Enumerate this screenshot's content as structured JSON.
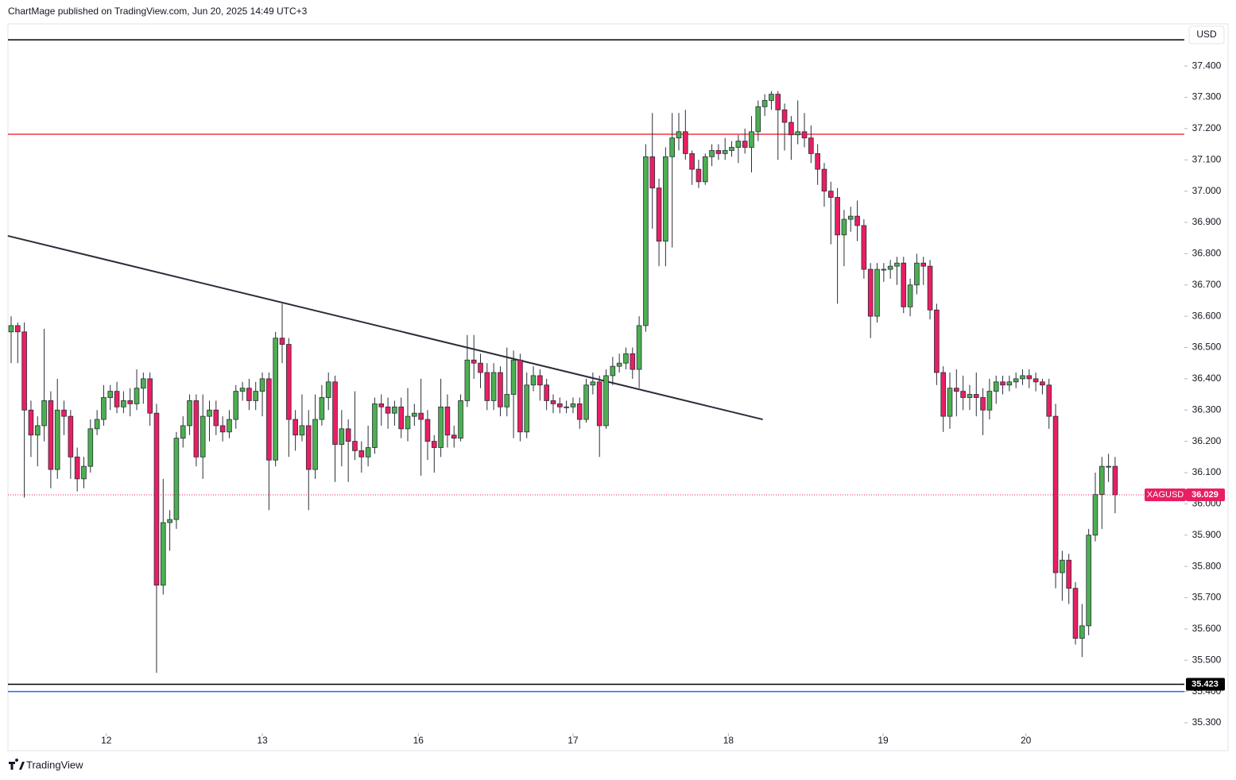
{
  "header": {
    "text": "ChartMage published on TradingView.com, Jun 20, 2025 14:49 UTC+3"
  },
  "footer": {
    "brand": "TradingView"
  },
  "chart_data": {
    "type": "candlestick",
    "symbol": "XAGUSD",
    "currency": "USD",
    "xlim": [
      -0.48,
      177.47
    ],
    "ylim": [
      35.211,
      37.535
    ],
    "xticks": [
      {
        "value": 14.4,
        "label": "12"
      },
      {
        "value": 38.0,
        "label": "13"
      },
      {
        "value": 61.6,
        "label": "16"
      },
      {
        "value": 85.0,
        "label": "17"
      },
      {
        "value": 108.5,
        "label": "18"
      },
      {
        "value": 131.9,
        "label": "19"
      },
      {
        "value": 153.5,
        "label": "20"
      }
    ],
    "yticks": [
      {
        "value": 35.3,
        "label": "35.300"
      },
      {
        "value": 35.4,
        "label": "35.400"
      },
      {
        "value": 35.5,
        "label": "35.500"
      },
      {
        "value": 35.6,
        "label": "35.600"
      },
      {
        "value": 35.7,
        "label": "35.700"
      },
      {
        "value": 35.8,
        "label": "35.800"
      },
      {
        "value": 35.9,
        "label": "35.900"
      },
      {
        "value": 36.0,
        "label": "36.000"
      },
      {
        "value": 36.1,
        "label": "36.100"
      },
      {
        "value": 36.2,
        "label": "36.200"
      },
      {
        "value": 36.3,
        "label": "36.300"
      },
      {
        "value": 36.4,
        "label": "36.400"
      },
      {
        "value": 36.5,
        "label": "36.500"
      },
      {
        "value": 36.6,
        "label": "36.600"
      },
      {
        "value": 36.7,
        "label": "36.700"
      },
      {
        "value": 36.8,
        "label": "36.800"
      },
      {
        "value": 36.9,
        "label": "36.900"
      },
      {
        "value": 37.0,
        "label": "37.000"
      },
      {
        "value": 37.1,
        "label": "37.100"
      },
      {
        "value": 37.2,
        "label": "37.200"
      },
      {
        "value": 37.3,
        "label": "37.300"
      },
      {
        "value": 37.4,
        "label": "37.400"
      }
    ],
    "up_color": "#4caf50",
    "down_color": "#e91e63",
    "levels": [
      {
        "value": 37.484,
        "color": "#000000"
      },
      {
        "value": 37.182,
        "color": "#f23645"
      },
      {
        "value": 35.423,
        "color": "#000000",
        "tag": true
      },
      {
        "value": 35.4,
        "color": "#2962ff"
      }
    ],
    "trendlines": [
      {
        "x": [
          -0.5,
          113.7
        ],
        "y": [
          36.857,
          36.27
        ],
        "color": "#2a2e39"
      }
    ],
    "open": [
      36.55,
      36.57,
      36.55,
      36.3,
      36.22,
      36.25,
      36.33,
      36.11,
      36.3,
      36.28,
      36.15,
      36.08,
      36.12,
      36.24,
      36.27,
      36.34,
      36.36,
      36.31,
      36.33,
      36.32,
      36.37,
      36.4,
      36.29,
      35.74,
      35.94,
      35.95,
      36.21,
      36.25,
      36.33,
      36.15,
      36.28,
      36.3,
      36.25,
      36.23,
      36.27,
      36.36,
      36.37,
      36.33,
      36.36,
      36.4,
      36.14,
      36.53,
      36.51,
      36.27,
      36.22,
      36.25,
      36.11,
      36.27,
      36.34,
      36.39,
      36.19,
      36.24,
      36.2,
      36.17,
      36.15,
      36.18,
      36.32,
      36.31,
      36.29,
      36.31,
      36.24,
      36.28,
      36.29,
      36.27,
      36.2,
      36.18,
      36.31,
      36.22,
      36.21,
      36.33,
      36.46,
      36.45,
      36.42,
      36.33,
      36.42,
      36.31,
      36.35,
      36.46,
      36.23,
      36.38,
      36.41,
      36.38,
      36.33,
      36.32,
      36.31,
      36.31,
      36.32,
      36.27,
      36.38,
      36.39,
      36.25,
      36.41,
      36.44,
      36.45,
      36.48,
      36.43,
      36.57,
      37.11,
      37.01,
      36.84,
      37.11,
      37.17,
      37.19,
      37.12,
      37.07,
      37.03,
      37.11,
      37.13,
      37.12,
      37.13,
      37.14,
      37.16,
      37.14,
      37.19,
      37.27,
      37.29,
      37.31,
      37.26,
      37.22,
      37.18,
      37.19,
      37.17,
      37.12,
      37.07,
      37.0,
      36.98,
      36.86,
      36.91,
      36.92,
      36.89,
      36.75,
      36.6,
      36.75,
      36.75,
      36.76,
      36.77,
      36.63,
      36.7,
      36.77,
      36.76,
      36.62,
      36.42,
      36.28,
      36.37,
      36.36,
      36.34,
      36.35,
      36.34,
      36.3,
      36.36,
      36.39,
      36.38,
      36.39,
      36.4,
      36.41,
      36.4,
      36.39,
      36.38,
      36.28,
      35.78,
      35.82,
      35.73,
      35.57,
      35.61,
      35.9,
      36.03,
      36.12,
      36.12
    ],
    "high": [
      36.6,
      36.58,
      36.58,
      36.33,
      36.28,
      36.56,
      36.36,
      36.4,
      36.33,
      36.3,
      36.18,
      36.15,
      36.27,
      36.3,
      36.38,
      36.38,
      36.39,
      36.36,
      36.37,
      36.43,
      36.42,
      36.42,
      36.32,
      36.08,
      35.98,
      36.23,
      36.28,
      36.35,
      36.35,
      36.35,
      36.33,
      36.33,
      36.28,
      36.3,
      36.38,
      36.39,
      36.4,
      36.39,
      36.42,
      36.42,
      36.55,
      36.64,
      36.53,
      36.3,
      36.35,
      36.3,
      36.35,
      36.38,
      36.42,
      36.41,
      36.3,
      36.27,
      36.36,
      36.2,
      36.25,
      36.34,
      36.35,
      36.34,
      36.33,
      36.34,
      36.37,
      36.32,
      36.4,
      36.3,
      36.22,
      36.4,
      36.35,
      36.25,
      36.35,
      36.54,
      36.54,
      36.48,
      36.45,
      36.45,
      36.44,
      36.5,
      36.49,
      36.48,
      36.42,
      36.44,
      36.43,
      36.4,
      36.35,
      36.34,
      36.33,
      36.34,
      36.34,
      36.4,
      36.42,
      36.41,
      36.43,
      36.47,
      36.48,
      36.5,
      36.5,
      36.6,
      37.15,
      37.25,
      37.04,
      37.14,
      37.25,
      37.25,
      37.26,
      37.13,
      37.1,
      37.12,
      37.15,
      37.15,
      37.17,
      37.16,
      37.18,
      37.2,
      37.24,
      37.29,
      37.31,
      37.32,
      37.32,
      37.28,
      37.24,
      37.29,
      37.25,
      37.21,
      37.15,
      37.09,
      37.03,
      37.01,
      36.94,
      36.95,
      36.97,
      36.91,
      36.77,
      36.77,
      36.77,
      36.78,
      36.79,
      36.79,
      36.72,
      36.8,
      36.79,
      36.78,
      36.64,
      36.44,
      36.42,
      36.43,
      36.41,
      36.38,
      36.42,
      36.37,
      36.4,
      36.41,
      36.41,
      36.41,
      36.42,
      36.43,
      36.43,
      36.42,
      36.4,
      36.4,
      36.32,
      35.85,
      35.84,
      35.75,
      35.68,
      35.92,
      36.1,
      36.15,
      36.16,
      36.15
    ],
    "low": [
      36.45,
      36.45,
      36.02,
      36.15,
      36.12,
      36.2,
      36.05,
      36.08,
      36.22,
      36.08,
      36.04,
      36.05,
      36.1,
      36.22,
      36.25,
      36.3,
      36.29,
      36.29,
      36.28,
      36.3,
      36.32,
      36.25,
      35.46,
      35.71,
      35.85,
      35.92,
      36.18,
      36.22,
      36.12,
      36.08,
      36.2,
      36.22,
      36.2,
      36.21,
      36.24,
      36.33,
      36.3,
      36.3,
      36.28,
      35.98,
      36.12,
      36.45,
      36.15,
      36.17,
      36.2,
      35.98,
      36.08,
      36.25,
      36.3,
      36.07,
      36.12,
      36.07,
      36.14,
      36.1,
      36.12,
      36.16,
      36.25,
      36.24,
      36.25,
      36.21,
      36.2,
      36.25,
      36.09,
      36.14,
      36.1,
      36.15,
      36.18,
      36.18,
      36.2,
      36.31,
      36.4,
      36.37,
      36.3,
      36.3,
      36.28,
      36.28,
      36.21,
      36.2,
      36.21,
      36.36,
      36.33,
      36.3,
      36.29,
      36.29,
      36.29,
      36.29,
      36.24,
      36.26,
      36.35,
      36.15,
      36.24,
      36.38,
      36.42,
      36.43,
      36.4,
      36.37,
      36.55,
      36.88,
      36.76,
      36.76,
      36.82,
      37.13,
      37.1,
      37.02,
      37.01,
      37.02,
      37.08,
      37.1,
      37.1,
      37.11,
      37.09,
      37.12,
      37.06,
      37.16,
      37.24,
      37.26,
      37.1,
      37.13,
      37.1,
      37.15,
      37.14,
      37.09,
      37.02,
      36.95,
      36.83,
      36.64,
      36.76,
      36.87,
      36.84,
      36.72,
      36.53,
      36.58,
      36.71,
      36.72,
      36.7,
      36.61,
      36.6,
      36.67,
      36.7,
      36.59,
      36.38,
      36.23,
      36.24,
      36.28,
      36.3,
      36.3,
      36.28,
      36.22,
      36.27,
      36.32,
      36.35,
      36.36,
      36.37,
      36.38,
      36.37,
      36.36,
      36.35,
      36.24,
      35.73,
      35.69,
      35.68,
      35.55,
      35.51,
      35.58,
      35.88,
      35.92,
      36.07,
      35.97
    ],
    "close": [
      36.57,
      36.55,
      36.3,
      36.22,
      36.25,
      36.33,
      36.11,
      36.3,
      36.28,
      36.15,
      36.08,
      36.12,
      36.24,
      36.27,
      36.34,
      36.36,
      36.31,
      36.33,
      36.32,
      36.37,
      36.4,
      36.29,
      35.74,
      35.94,
      35.95,
      36.21,
      36.25,
      36.33,
      36.15,
      36.28,
      36.3,
      36.25,
      36.23,
      36.27,
      36.36,
      36.37,
      36.33,
      36.36,
      36.4,
      36.14,
      36.53,
      36.51,
      36.27,
      36.22,
      36.25,
      36.11,
      36.27,
      36.34,
      36.39,
      36.19,
      36.24,
      36.2,
      36.17,
      36.15,
      36.18,
      36.32,
      36.31,
      36.29,
      36.31,
      36.24,
      36.28,
      36.29,
      36.27,
      36.2,
      36.18,
      36.31,
      36.22,
      36.21,
      36.33,
      36.46,
      36.45,
      36.42,
      36.33,
      36.42,
      36.31,
      36.35,
      36.46,
      36.23,
      36.38,
      36.41,
      36.38,
      36.33,
      36.32,
      36.31,
      36.31,
      36.32,
      36.27,
      36.38,
      36.39,
      36.25,
      36.41,
      36.44,
      36.45,
      36.48,
      36.43,
      36.57,
      37.11,
      37.01,
      36.84,
      37.11,
      37.17,
      37.19,
      37.12,
      37.07,
      37.03,
      37.11,
      37.13,
      37.12,
      37.13,
      37.14,
      37.16,
      37.14,
      37.19,
      37.27,
      37.29,
      37.31,
      37.26,
      37.22,
      37.18,
      37.19,
      37.17,
      37.12,
      37.07,
      37.0,
      36.98,
      36.86,
      36.91,
      36.92,
      36.89,
      36.75,
      36.6,
      36.75,
      36.75,
      36.76,
      36.77,
      36.63,
      36.7,
      36.77,
      36.76,
      36.62,
      36.42,
      36.28,
      36.37,
      36.36,
      36.34,
      36.35,
      36.34,
      36.3,
      36.36,
      36.39,
      36.38,
      36.39,
      36.4,
      36.41,
      36.4,
      36.39,
      36.38,
      36.28,
      35.78,
      35.82,
      35.73,
      35.57,
      35.61,
      35.9,
      36.03,
      36.12,
      36.12,
      36.029
    ]
  }
}
